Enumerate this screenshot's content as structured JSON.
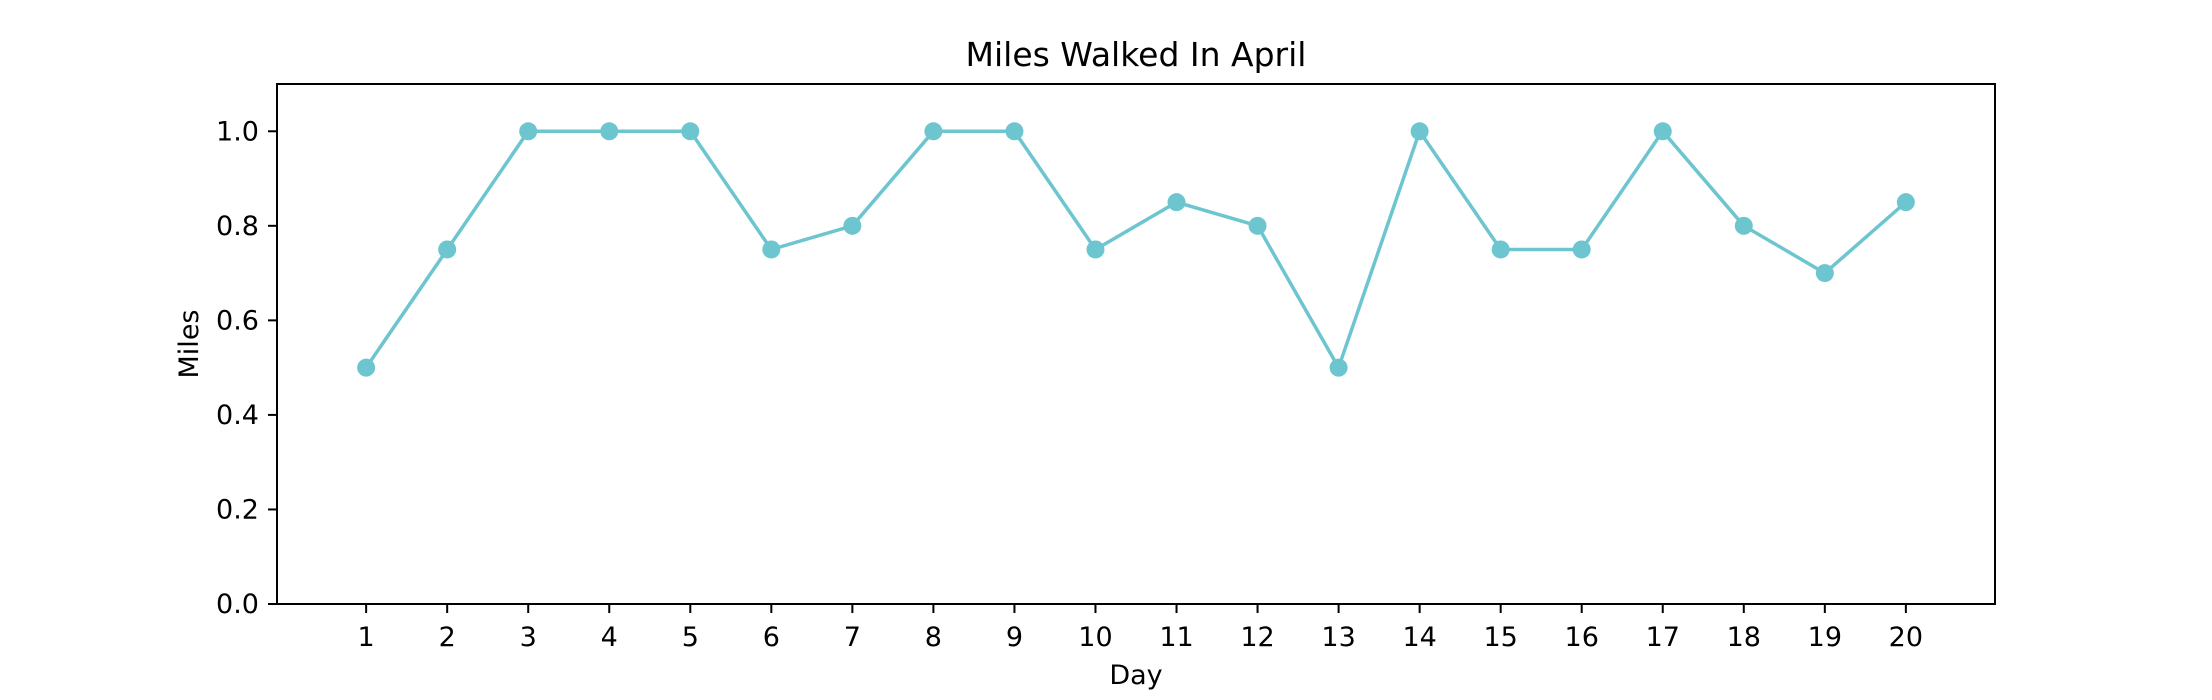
{
  "chart_data": {
    "type": "line",
    "title": "Miles Walked In April",
    "xlabel": "Day",
    "ylabel": "Miles",
    "x": [
      1,
      2,
      3,
      4,
      5,
      6,
      7,
      8,
      9,
      10,
      11,
      12,
      13,
      14,
      15,
      16,
      17,
      18,
      19,
      20
    ],
    "series": [
      {
        "values": [
          0.5,
          0.75,
          1.0,
          1.0,
          1.0,
          0.75,
          0.8,
          1.0,
          1.0,
          0.75,
          0.85,
          0.8,
          0.5,
          1.0,
          0.75,
          0.75,
          1.0,
          0.8,
          0.7,
          0.85
        ],
        "color": "#6cc5cf",
        "marker": "circle"
      }
    ],
    "xticks": [
      "1",
      "2",
      "3",
      "4",
      "5",
      "6",
      "7",
      "8",
      "9",
      "10",
      "11",
      "12",
      "13",
      "14",
      "15",
      "16",
      "17",
      "18",
      "19",
      "20"
    ],
    "yticks": [
      "0.0",
      "0.2",
      "0.4",
      "0.6",
      "0.8",
      "1.0"
    ],
    "xlim": [
      -0.1,
      21.1
    ],
    "ylim": [
      0.0,
      1.1
    ],
    "grid": false,
    "legend": "none"
  }
}
